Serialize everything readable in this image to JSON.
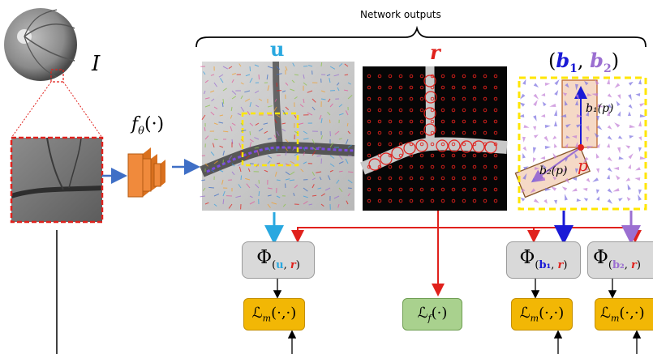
{
  "header": {
    "network_outputs_label": "Network outputs"
  },
  "input": {
    "image_symbol": "I"
  },
  "network": {
    "function_label": "f",
    "function_sub": "θ",
    "function_arg": "(·)"
  },
  "outputs": {
    "u_label": "u",
    "r_label": "r",
    "b_label_open": "(",
    "b1_label": "b",
    "b1_sub": "1",
    "b_comma": ", ",
    "b2_label": "b",
    "b2_sub": "2",
    "b_label_close": ")",
    "b1_annotation": "b₁(p)",
    "b2_annotation": "b₂(p)",
    "p_annotation": "p"
  },
  "phi_boxes": [
    {
      "phi": "Φ",
      "sub_vec": "u",
      "sub_r": "r"
    },
    {
      "phi": "Φ",
      "sub_vec": "b₁",
      "sub_r": "r"
    },
    {
      "phi": "Φ",
      "sub_vec": "b₂",
      "sub_r": "r"
    }
  ],
  "loss_boxes": [
    {
      "L": "ℒ",
      "sub": "m",
      "args": "(·,·)"
    },
    {
      "L": "ℒ",
      "sub": "f",
      "args": "(·)"
    },
    {
      "L": "ℒ",
      "sub": "m",
      "args": "(·,·)"
    },
    {
      "L": "ℒ",
      "sub": "m",
      "args": "(·,·)"
    }
  ],
  "colors": {
    "u_color": "#29a8e0",
    "r_color": "#e0211c",
    "b1_color": "#1a1ad6",
    "b2_color": "#9b6fd1",
    "arrow_blue": "#3f6fc6",
    "red_dash": "#e0211c",
    "yellow_dash": "#ffe600"
  }
}
